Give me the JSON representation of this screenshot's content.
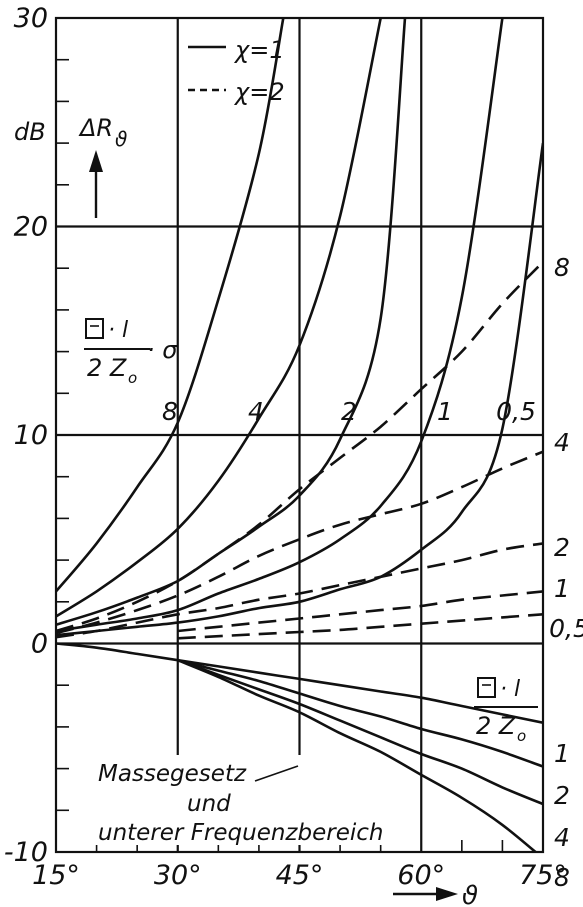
{
  "chart_data": {
    "type": "line",
    "x_range": [
      15,
      75
    ],
    "y_range": [
      -10,
      30
    ],
    "grid": true,
    "x_ticks": [
      {
        "value": 15,
        "label": "15°"
      },
      {
        "value": 30,
        "label": "30°"
      },
      {
        "value": 45,
        "label": "45°"
      },
      {
        "value": 60,
        "label": "60°"
      },
      {
        "value": 75,
        "label": "75°"
      }
    ],
    "y_ticks": [
      {
        "value": 30,
        "label": "30"
      },
      {
        "value": 20,
        "label": "20"
      },
      {
        "value": 10,
        "label": "10"
      },
      {
        "value": 0,
        "label": "0"
      },
      {
        "value": -10,
        "label": "-10"
      }
    ],
    "x_axis_symbol": "ϑ",
    "y_unit": "dB",
    "y_axis_symbol": "ΔR",
    "y_axis_subscript": "ϑ",
    "legend": [
      {
        "label": "χ=1",
        "style": "solid"
      },
      {
        "label": "χ=2",
        "style": "dashed"
      }
    ],
    "upper_param_label": "Ξ·l / 2 Z₀ · σ",
    "lower_param_label": "Ξ·l / 2 Z₀",
    "annotation": [
      "Massegesetz",
      "und",
      "unterer Frequenzbereich"
    ],
    "series": [
      {
        "name": "8",
        "style": "solid",
        "group": "upper",
        "x": [
          15,
          20,
          25,
          30,
          35,
          40,
          43
        ],
        "y": [
          2.5,
          4.8,
          7.5,
          10.6,
          16.5,
          23.5,
          30
        ]
      },
      {
        "name": "4",
        "style": "solid",
        "group": "upper",
        "x": [
          15,
          20,
          25,
          30,
          35,
          40,
          45,
          50,
          55
        ],
        "y": [
          1.3,
          2.5,
          3.9,
          5.5,
          7.8,
          10.8,
          14.3,
          20.5,
          30
        ]
      },
      {
        "name": "2",
        "style": "solid",
        "group": "upper",
        "x": [
          15,
          20,
          25,
          30,
          35,
          40,
          45,
          50,
          55,
          58
        ],
        "y": [
          0.9,
          1.5,
          2.2,
          3.0,
          4.3,
          5.6,
          7.1,
          9.8,
          15.6,
          30
        ]
      },
      {
        "name": "1",
        "style": "solid",
        "group": "upper",
        "x": [
          15,
          20,
          25,
          30,
          35,
          40,
          45,
          50,
          55,
          60,
          65,
          70
        ],
        "y": [
          0.6,
          0.9,
          1.2,
          1.6,
          2.4,
          3.1,
          3.9,
          5.0,
          6.6,
          9.7,
          16.6,
          30
        ]
      },
      {
        "name": "0,5",
        "style": "solid",
        "group": "upper",
        "x": [
          15,
          20,
          25,
          30,
          35,
          40,
          45,
          50,
          55,
          60,
          65,
          70,
          75
        ],
        "y": [
          0.4,
          0.6,
          0.8,
          1.0,
          1.3,
          1.7,
          2.0,
          2.6,
          3.2,
          4.5,
          6.3,
          10.3,
          24
        ]
      },
      {
        "name": "8",
        "style": "dashed",
        "group": "upper",
        "x": [
          15,
          20,
          25,
          30,
          35,
          40,
          45,
          50,
          55,
          60,
          65,
          70,
          75
        ],
        "y": [
          0.6,
          1.2,
          2.0,
          3.0,
          4.3,
          5.7,
          7.4,
          8.9,
          10.4,
          12.2,
          14.0,
          16.3,
          18.3
        ]
      },
      {
        "name": "4",
        "style": "dashed",
        "group": "upper",
        "x": [
          15,
          20,
          25,
          30,
          35,
          40,
          45,
          50,
          55,
          60,
          65,
          70,
          75
        ],
        "y": [
          0.5,
          1.0,
          1.6,
          2.3,
          3.2,
          4.2,
          5.0,
          5.7,
          6.2,
          6.7,
          7.5,
          8.4,
          9.2
        ]
      },
      {
        "name": "2",
        "style": "dashed",
        "group": "upper",
        "x": [
          15,
          20,
          25,
          30,
          35,
          40,
          45,
          50,
          55,
          60,
          65,
          70,
          75
        ],
        "y": [
          0.3,
          0.6,
          1.0,
          1.4,
          1.7,
          2.1,
          2.4,
          2.8,
          3.2,
          3.6,
          4.0,
          4.5,
          4.8
        ]
      },
      {
        "name": "1",
        "style": "dashed",
        "group": "upper",
        "x": [
          30,
          35,
          40,
          45,
          50,
          55,
          60,
          65,
          70,
          75
        ],
        "y": [
          0.6,
          0.8,
          1.0,
          1.2,
          1.4,
          1.6,
          1.8,
          2.1,
          2.3,
          2.5
        ]
      },
      {
        "name": "0,5",
        "style": "dashed",
        "group": "upper",
        "x": [
          30,
          35,
          40,
          45,
          50,
          55,
          60,
          65,
          70,
          75
        ],
        "y": [
          0.25,
          0.35,
          0.45,
          0.55,
          0.65,
          0.8,
          0.95,
          1.1,
          1.25,
          1.4
        ]
      },
      {
        "name": "1",
        "style": "solid",
        "group": "lower",
        "x": [
          15,
          20,
          25,
          30,
          35,
          40,
          45,
          50,
          55,
          60,
          65,
          70,
          75
        ],
        "y": [
          0,
          -0.2,
          -0.5,
          -0.8,
          -1.1,
          -1.4,
          -1.7,
          -2.0,
          -2.3,
          -2.6,
          -3.0,
          -3.4,
          -3.8
        ]
      },
      {
        "name": "2",
        "style": "solid",
        "group": "lower",
        "x": [
          30,
          35,
          40,
          45,
          50,
          55,
          60,
          65,
          70,
          75
        ],
        "y": [
          -0.8,
          -1.3,
          -1.8,
          -2.4,
          -3.0,
          -3.5,
          -4.1,
          -4.6,
          -5.2,
          -5.9
        ]
      },
      {
        "name": "4",
        "style": "solid",
        "group": "lower",
        "x": [
          30,
          35,
          40,
          45,
          50,
          55,
          60,
          65,
          70,
          75
        ],
        "y": [
          -0.8,
          -1.5,
          -2.2,
          -2.9,
          -3.7,
          -4.5,
          -5.3,
          -6.0,
          -6.9,
          -7.7
        ]
      },
      {
        "name": "8",
        "style": "solid",
        "group": "lower",
        "x": [
          30,
          35,
          40,
          45,
          50,
          55,
          60,
          65,
          70,
          75
        ],
        "y": [
          -0.8,
          -1.6,
          -2.5,
          -3.3,
          -4.3,
          -5.2,
          -6.3,
          -7.4,
          -8.7,
          -10.3
        ]
      }
    ]
  }
}
